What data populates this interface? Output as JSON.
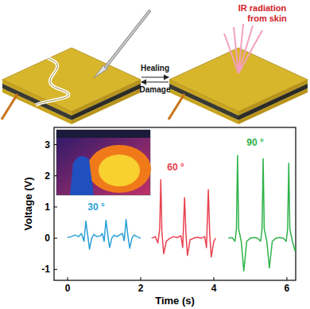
{
  "diagram": {
    "healing_label": "Healing",
    "damage_label": "Damage",
    "ir_label": [
      "IR radiation",
      "from skin"
    ]
  },
  "chart_data": {
    "type": "line",
    "x_label": "Time (s)",
    "y_label": "Voltage (V)",
    "xlim": [
      -0.37,
      6.24
    ],
    "ylim": [
      -1.35,
      3.55
    ],
    "xticks": [
      0,
      2,
      4,
      6
    ],
    "yticks": [
      -1,
      0,
      1,
      2,
      3
    ],
    "grid": false,
    "series": [
      {
        "name": "30 °",
        "color": "#2a9fd6",
        "x": [
          0,
          0.1,
          0.2,
          0.3,
          0.38,
          0.45,
          0.5,
          0.55,
          0.6,
          0.66,
          0.72,
          0.8,
          0.9,
          0.95,
          1.0,
          1.05,
          1.1,
          1.15,
          1.21,
          1.27,
          1.35,
          1.45,
          1.5,
          1.55,
          1.6,
          1.65,
          1.7,
          1.76,
          1.82,
          1.9,
          2.0
        ],
        "values": [
          0.02,
          0.05,
          0.1,
          0.05,
          0.15,
          -0.1,
          0.55,
          0.1,
          -0.35,
          0.0,
          0.12,
          0.05,
          0.08,
          0.15,
          -0.1,
          0.58,
          0.1,
          -0.3,
          0.0,
          0.1,
          0.05,
          0.12,
          0.15,
          -0.08,
          0.6,
          0.08,
          -0.32,
          0.0,
          0.1,
          0.05,
          0.0
        ]
      },
      {
        "name": "60 °",
        "color": "#e8414f",
        "x": [
          2.3,
          2.4,
          2.47,
          2.52,
          2.55,
          2.58,
          2.63,
          2.7,
          2.8,
          2.9,
          3.0,
          3.1,
          3.15,
          3.2,
          3.24,
          3.28,
          3.35,
          3.45,
          3.55,
          3.65,
          3.75,
          3.8,
          3.85,
          3.89,
          3.93,
          4.0,
          4.05
        ],
        "values": [
          0.0,
          0.05,
          -0.15,
          0.3,
          1.87,
          0.2,
          -0.5,
          -0.1,
          0.0,
          0.05,
          0.02,
          0.08,
          -0.3,
          1.3,
          0.1,
          -0.55,
          -0.05,
          0.0,
          0.03,
          0.0,
          0.05,
          -0.3,
          1.55,
          0.1,
          -0.6,
          -0.1,
          0.0
        ]
      },
      {
        "name": "90 °",
        "color": "#2fb34a",
        "x": [
          4.4,
          4.5,
          4.58,
          4.62,
          4.65,
          4.68,
          4.75,
          4.82,
          4.9,
          5.0,
          5.1,
          5.2,
          5.28,
          5.32,
          5.35,
          5.38,
          5.45,
          5.52,
          5.6,
          5.7,
          5.8,
          5.9,
          5.98,
          6.02,
          6.05,
          6.08,
          6.15,
          6.22,
          6.3
        ],
        "values": [
          0.0,
          0.02,
          -0.1,
          0.3,
          2.65,
          0.3,
          -0.1,
          -1.05,
          -0.1,
          0.0,
          0.02,
          0.0,
          -0.1,
          0.3,
          2.55,
          0.3,
          -0.1,
          -0.95,
          -0.1,
          0.0,
          0.02,
          0.0,
          -0.1,
          0.3,
          2.4,
          0.3,
          -0.1,
          -0.4,
          0.0
        ]
      }
    ]
  }
}
